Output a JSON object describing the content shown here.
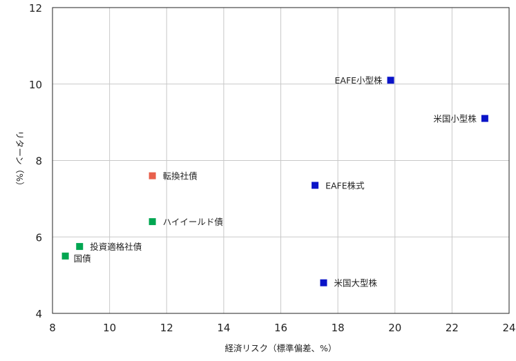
{
  "chart_data": {
    "type": "scatter",
    "title": "",
    "xlabel": "経済リスク（標準偏差、%）",
    "ylabel": "リターン（%）",
    "xlim": [
      8,
      24
    ],
    "ylim": [
      4,
      12
    ],
    "xticks": [
      8,
      10,
      12,
      14,
      16,
      18,
      20,
      22,
      24
    ],
    "yticks": [
      4,
      6,
      8,
      10,
      12
    ],
    "grid": true,
    "points": [
      {
        "label": "EAFE小型株",
        "x": 19.85,
        "y": 10.1,
        "color": "#0a14c8",
        "label_side": "left"
      },
      {
        "label": "米国小型株",
        "x": 23.15,
        "y": 9.1,
        "color": "#0a14c8",
        "label_side": "left"
      },
      {
        "label": "EAFE株式",
        "x": 17.2,
        "y": 7.35,
        "color": "#0a14c8",
        "label_side": "right"
      },
      {
        "label": "米国大型株",
        "x": 17.5,
        "y": 4.8,
        "color": "#0a14c8",
        "label_side": "right"
      },
      {
        "label": "転換社債",
        "x": 11.5,
        "y": 7.6,
        "color": "#e8604c",
        "label_side": "right"
      },
      {
        "label": "ハイイールド債",
        "x": 11.5,
        "y": 6.4,
        "color": "#00a651",
        "label_side": "right"
      },
      {
        "label": "投資適格社債",
        "x": 8.95,
        "y": 5.75,
        "color": "#00a651",
        "label_side": "right"
      },
      {
        "label": "国債",
        "x": 8.45,
        "y": 5.5,
        "color": "#00a651",
        "label_side": "right-below"
      }
    ]
  }
}
